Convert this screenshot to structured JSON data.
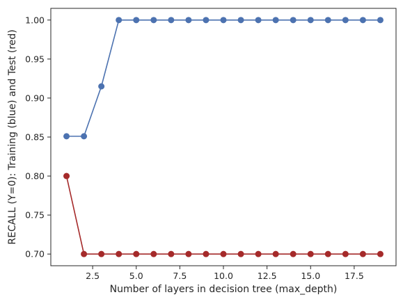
{
  "chart_data": {
    "type": "line",
    "title": "",
    "xlabel": "Number of layers in decision tree (max_depth)",
    "ylabel": "RECALL (Y=0): Training (blue) and Test (red)",
    "xlim": [
      0.1,
      19.9
    ],
    "ylim": [
      0.685,
      1.015
    ],
    "xticks": [
      2.5,
      5.0,
      7.5,
      10.0,
      12.5,
      15.0,
      17.5
    ],
    "xtick_labels": [
      "2.5",
      "5.0",
      "7.5",
      "10.0",
      "12.5",
      "15.0",
      "17.5"
    ],
    "yticks": [
      0.7,
      0.75,
      0.8,
      0.85,
      0.9,
      0.95,
      1.0
    ],
    "ytick_labels": [
      "0.70",
      "0.75",
      "0.80",
      "0.85",
      "0.90",
      "0.95",
      "1.00"
    ],
    "grid": false,
    "legend": "none",
    "x": [
      1,
      2,
      3,
      4,
      5,
      6,
      7,
      8,
      9,
      10,
      11,
      12,
      13,
      14,
      15,
      16,
      17,
      18,
      19
    ],
    "series": [
      {
        "color": "#4c72b0",
        "values": [
          0.851,
          0.851,
          0.915,
          1.0,
          1.0,
          1.0,
          1.0,
          1.0,
          1.0,
          1.0,
          1.0,
          1.0,
          1.0,
          1.0,
          1.0,
          1.0,
          1.0,
          1.0,
          1.0
        ]
      },
      {
        "color": "#a52a2a",
        "values": [
          0.8,
          0.7,
          0.7,
          0.7,
          0.7,
          0.7,
          0.7,
          0.7,
          0.7,
          0.7,
          0.7,
          0.7,
          0.7,
          0.7,
          0.7,
          0.7,
          0.7,
          0.7,
          0.7
        ]
      }
    ]
  }
}
